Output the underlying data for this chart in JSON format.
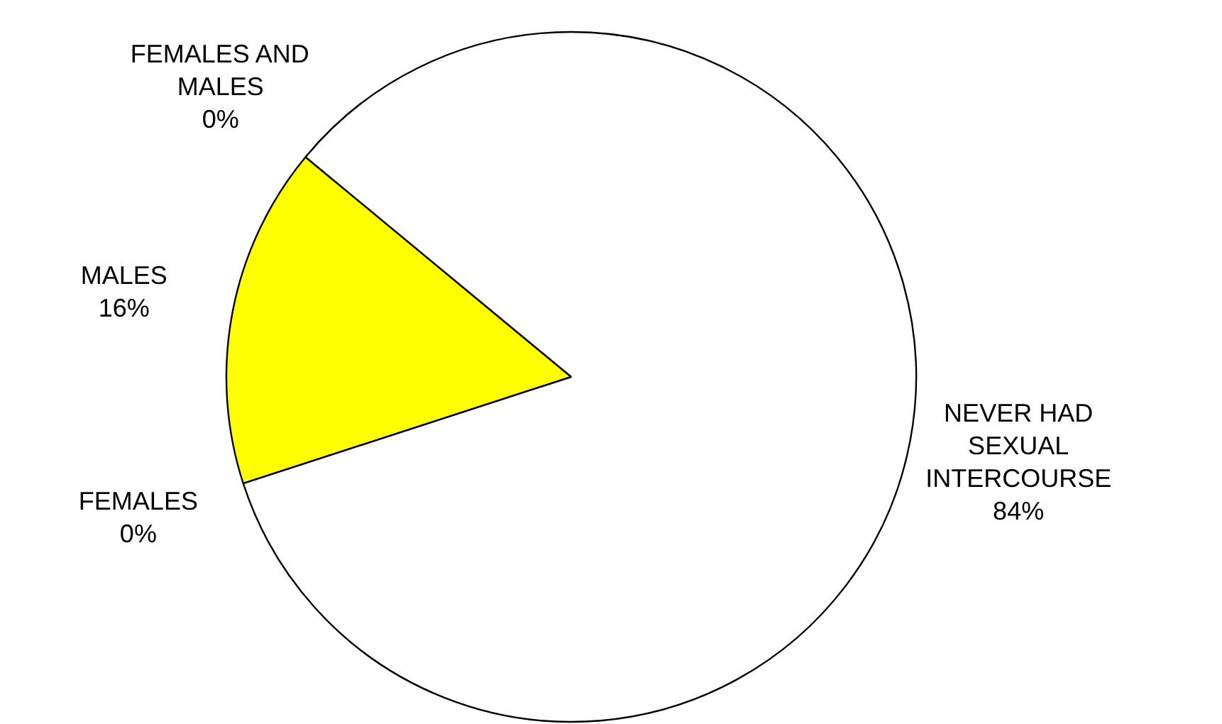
{
  "chart_data": {
    "type": "pie",
    "categories": [
      "FEMALES",
      "MALES",
      "FEMALES AND MALES",
      "NEVER HAD SEXUAL INTERCOURSE"
    ],
    "values": [
      0,
      16,
      0,
      84
    ],
    "colors": [
      "#ffffff",
      "#ffff00",
      "#ffffff",
      "#ffffff"
    ],
    "value_labels": [
      "0%",
      "16%",
      "0%",
      "84%"
    ]
  }
}
